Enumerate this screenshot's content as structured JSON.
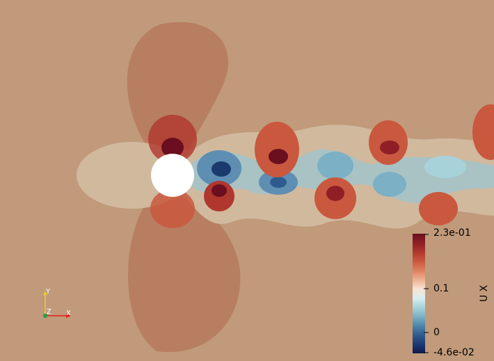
{
  "colorbar": {
    "title": "U X",
    "max_label": "2.3e-01",
    "mid_label": "0.1",
    "zero_label": "0",
    "min_label": "-4.6e-02",
    "range": [
      -0.046,
      0.23
    ],
    "ticks": [
      0.23,
      0.1,
      0,
      -0.046
    ],
    "stops": [
      "#6a0e20",
      "#8f1f26",
      "#b0372e",
      "#c9583e",
      "#dd8060",
      "#eeb090",
      "#f6e3d3",
      "#d8eef0",
      "#a8d2da",
      "#7cb0c4",
      "#4f86a8",
      "#2f5b8e",
      "#1b3a72",
      "#10194e"
    ]
  },
  "orientation_axes": {
    "y_label": "Y",
    "z_label": "Z",
    "x_label": "X",
    "colors": {
      "x": "#e02020",
      "y": "#e8d020",
      "z": "#20a040"
    }
  },
  "field": {
    "background": "#c09a7a",
    "cylinder_fill": "#ffffff",
    "palette": {
      "deep_red": "#7a1a22",
      "red": "#a8402f",
      "light_red": "#b77a5c",
      "lobe": "#b87e62",
      "pale": "#d1b99e",
      "pale_blue": "#a9c2c4",
      "blue": "#5e8eb2",
      "dark_blue": "#1b3a6e"
    }
  }
}
